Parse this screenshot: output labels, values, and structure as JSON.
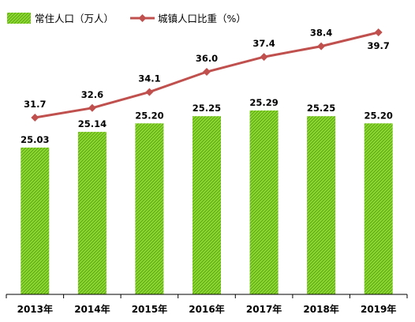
{
  "chart_data": {
    "type": "bar",
    "categories": [
      "2013年",
      "2014年",
      "2015年",
      "2016年",
      "2017年",
      "2018年",
      "2019年"
    ],
    "series": [
      {
        "name": "常住人口（万人）",
        "type": "bar",
        "axis": "left",
        "values": [
          25.03,
          25.14,
          25.2,
          25.25,
          25.29,
          25.25,
          25.2
        ],
        "labels": [
          "25.03",
          "25.14",
          "25.20",
          "25.25",
          "25.29",
          "25.25",
          "25.20"
        ]
      },
      {
        "name": "城镇人口比重（%）",
        "type": "line",
        "axis": "right",
        "values": [
          31.7,
          32.6,
          34.1,
          36.0,
          37.4,
          38.4,
          39.7
        ],
        "labels": [
          "31.7",
          "32.6",
          "34.1",
          "36.0",
          "37.4",
          "38.4",
          "39.7"
        ]
      }
    ],
    "colors": {
      "bar_fill": "#8fdb2e",
      "bar_hatch": "#5aa31a",
      "line": "#c0504d",
      "axis": "#000000"
    },
    "legend_position": "top-left",
    "gridlines": false
  }
}
